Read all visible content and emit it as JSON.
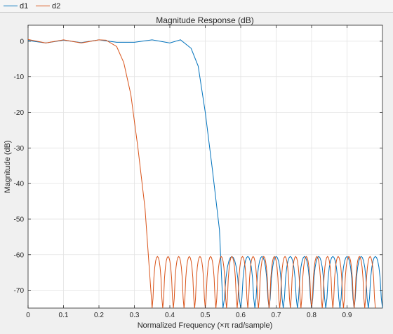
{
  "legend": {
    "items": [
      {
        "label": "d1",
        "color": "#0072BD"
      },
      {
        "label": "d2",
        "color": "#D95319"
      }
    ]
  },
  "chart_data": {
    "type": "line",
    "title": "Magnitude Response (dB)",
    "xlabel": "Normalized Frequency (×π rad/sample)",
    "ylabel": "Magnitude (dB)",
    "xlim": [
      0,
      1
    ],
    "ylim": [
      -75,
      4.5
    ],
    "xticks": [
      0,
      0.1,
      0.2,
      0.3,
      0.4,
      0.5,
      0.6,
      0.7,
      0.8,
      0.9
    ],
    "xtick_labels": [
      "0",
      "0.1",
      "0.2",
      "0.3",
      "0.4",
      "0.5",
      "0.6",
      "0.7",
      "0.8",
      "0.9"
    ],
    "yticks": [
      0,
      -10,
      -20,
      -30,
      -40,
      -50,
      -60,
      -70
    ],
    "ytick_labels": [
      "0",
      "-10",
      "-20",
      "-30",
      "-40",
      "-50",
      "-60",
      "-70"
    ],
    "grid": true,
    "series": [
      {
        "name": "d1",
        "color": "#0072BD",
        "passband_edge": 0.43,
        "stopband_start": 0.55,
        "stopband_level_db": -60.5,
        "passband_ripple_db": 0.5,
        "points": [
          [
            0,
            0.2
          ],
          [
            0.05,
            -0.5
          ],
          [
            0.1,
            0.3
          ],
          [
            0.15,
            -0.4
          ],
          [
            0.2,
            0.4
          ],
          [
            0.25,
            -0.3
          ],
          [
            0.3,
            -0.3
          ],
          [
            0.35,
            0.4
          ],
          [
            0.4,
            -0.5
          ],
          [
            0.43,
            0.4
          ],
          [
            0.46,
            -2
          ],
          [
            0.48,
            -7
          ],
          [
            0.5,
            -20
          ],
          [
            0.52,
            -36
          ],
          [
            0.54,
            -53
          ],
          [
            0.55,
            -75
          ]
        ],
        "stopband_nulls": [
          0.55,
          0.6,
          0.64,
          0.68,
          0.72,
          0.76,
          0.8,
          0.84,
          0.88,
          0.92,
          0.96,
          1.0
        ]
      },
      {
        "name": "d2",
        "color": "#D95319",
        "passband_edge": 0.22,
        "stopband_start": 0.35,
        "stopband_level_db": -60.5,
        "passband_ripple_db": 0.5,
        "points": [
          [
            0,
            0.5
          ],
          [
            0.05,
            -0.5
          ],
          [
            0.1,
            0.4
          ],
          [
            0.15,
            -0.5
          ],
          [
            0.2,
            0.4
          ],
          [
            0.22,
            0.3
          ],
          [
            0.25,
            -1.5
          ],
          [
            0.27,
            -6
          ],
          [
            0.29,
            -15
          ],
          [
            0.31,
            -30
          ],
          [
            0.33,
            -47
          ],
          [
            0.35,
            -75
          ]
        ],
        "stopband_nulls": [
          0.35,
          0.38,
          0.41,
          0.44,
          0.47,
          0.5,
          0.53,
          0.56,
          0.59,
          0.62,
          0.65,
          0.68,
          0.71,
          0.74,
          0.77,
          0.8,
          0.83,
          0.86,
          0.89,
          0.92,
          0.95,
          0.98
        ]
      }
    ]
  }
}
